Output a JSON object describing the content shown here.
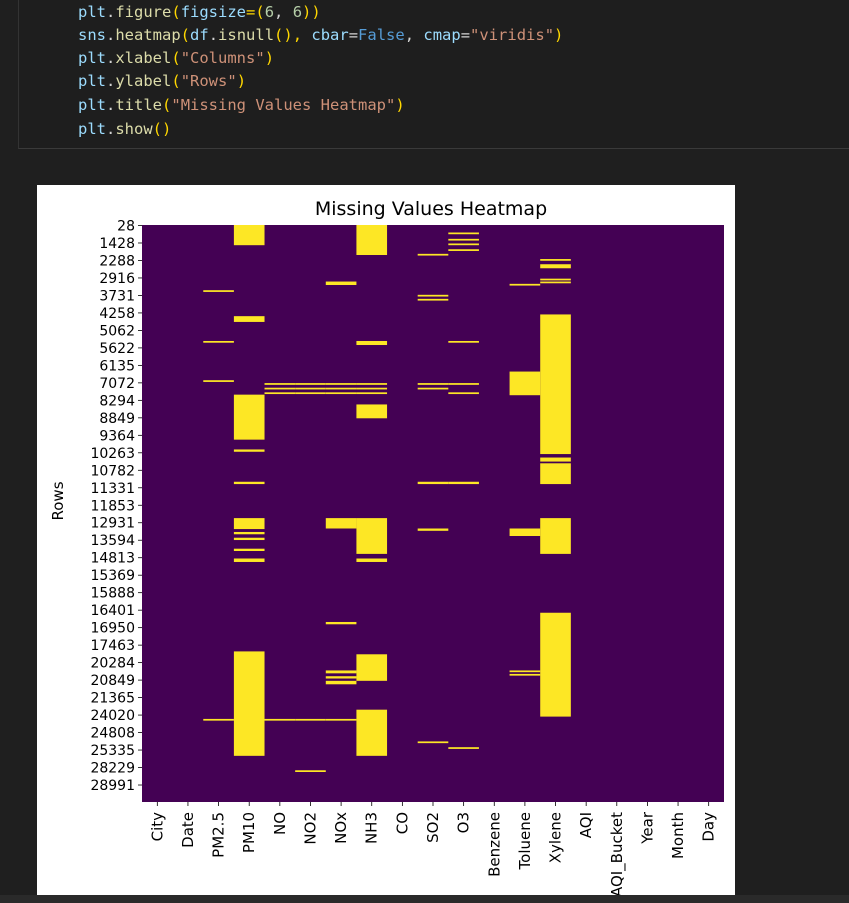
{
  "code": {
    "lines": [
      [
        [
          "plt",
          ".figure",
          "("
        ],
        [
          "figsize",
          "="
        ],
        [
          "(",
          "6",
          ", ",
          "6",
          ")"
        ],
        [
          ")"
        ]
      ],
      [],
      [],
      [],
      [],
      []
    ],
    "text": [
      "plt.figure(figsize=(6, 6))",
      "sns.heatmap(df.isnull(), cbar=False, cmap=\"viridis\")",
      "plt.xlabel(\"Columns\")",
      "plt.ylabel(\"Rows\")",
      "plt.title(\"Missing Values Heatmap\")",
      "plt.show()"
    ]
  },
  "gutter_marker": "]",
  "colors": {
    "absent": "#440154",
    "missing": "#fde725"
  },
  "chart_data": {
    "type": "heatmap",
    "title": "Missing Values Heatmap",
    "xlabel": "Columns",
    "ylabel": "Rows",
    "x_categories": [
      "City",
      "Date",
      "PM2.5",
      "PM10",
      "NO",
      "NO2",
      "NOx",
      "NH3",
      "CO",
      "SO2",
      "O3",
      "Benzene",
      "Toluene",
      "Xylene",
      "AQI",
      "AQI_Bucket",
      "Year",
      "Month",
      "Day"
    ],
    "y_tick_labels": [
      "28",
      "1428",
      "2288",
      "2916",
      "3731",
      "4258",
      "5062",
      "5622",
      "6135",
      "7072",
      "8294",
      "8849",
      "9364",
      "10263",
      "10782",
      "11331",
      "11853",
      "12931",
      "13594",
      "14813",
      "15369",
      "15888",
      "16401",
      "16950",
      "17463",
      "20284",
      "20849",
      "21365",
      "24020",
      "24808",
      "25335",
      "28229",
      "28991"
    ],
    "row_fraction_note": "Missing spans given as [start_fraction, end_fraction] of total rows",
    "missing_spans": {
      "PM2.5": [
        [
          0.113,
          0.116
        ],
        [
          0.201,
          0.204
        ],
        [
          0.269,
          0.272
        ],
        [
          0.856,
          0.859
        ]
      ],
      "PM10": [
        [
          0.0,
          0.035
        ],
        [
          0.158,
          0.168
        ],
        [
          0.294,
          0.372
        ],
        [
          0.389,
          0.393
        ],
        [
          0.445,
          0.449
        ],
        [
          0.508,
          0.527
        ],
        [
          0.532,
          0.536
        ],
        [
          0.542,
          0.546
        ],
        [
          0.561,
          0.565
        ],
        [
          0.578,
          0.584
        ],
        [
          0.739,
          0.92
        ]
      ],
      "NO": [
        [
          0.274,
          0.277
        ],
        [
          0.282,
          0.285
        ],
        [
          0.29,
          0.293
        ],
        [
          0.856,
          0.859
        ]
      ],
      "NO2": [
        [
          0.274,
          0.277
        ],
        [
          0.282,
          0.285
        ],
        [
          0.29,
          0.293
        ],
        [
          0.856,
          0.859
        ],
        [
          0.945,
          0.948
        ]
      ],
      "NOx": [
        [
          0.098,
          0.104
        ],
        [
          0.274,
          0.277
        ],
        [
          0.282,
          0.285
        ],
        [
          0.29,
          0.293
        ],
        [
          0.508,
          0.526
        ],
        [
          0.688,
          0.692
        ],
        [
          0.772,
          0.777
        ],
        [
          0.782,
          0.786
        ],
        [
          0.79,
          0.796
        ],
        [
          0.856,
          0.859
        ]
      ],
      "NH3": [
        [
          0.0,
          0.052
        ],
        [
          0.201,
          0.208
        ],
        [
          0.274,
          0.277
        ],
        [
          0.282,
          0.285
        ],
        [
          0.29,
          0.293
        ],
        [
          0.311,
          0.335
        ],
        [
          0.508,
          0.57
        ],
        [
          0.578,
          0.584
        ],
        [
          0.744,
          0.79
        ],
        [
          0.84,
          0.92
        ]
      ],
      "SO2": [
        [
          0.05,
          0.053
        ],
        [
          0.121,
          0.124
        ],
        [
          0.128,
          0.131
        ],
        [
          0.274,
          0.277
        ],
        [
          0.282,
          0.285
        ],
        [
          0.445,
          0.449
        ],
        [
          0.526,
          0.53
        ],
        [
          0.895,
          0.898
        ]
      ],
      "O3": [
        [
          0.013,
          0.016
        ],
        [
          0.024,
          0.027
        ],
        [
          0.032,
          0.035
        ],
        [
          0.042,
          0.045
        ],
        [
          0.201,
          0.204
        ],
        [
          0.274,
          0.277
        ],
        [
          0.29,
          0.293
        ],
        [
          0.445,
          0.449
        ],
        [
          0.905,
          0.908
        ]
      ],
      "Toluene": [
        [
          0.102,
          0.105
        ],
        [
          0.254,
          0.295
        ],
        [
          0.526,
          0.539
        ],
        [
          0.772,
          0.775
        ],
        [
          0.778,
          0.781
        ]
      ],
      "Xylene": [
        [
          0.059,
          0.062
        ],
        [
          0.068,
          0.075
        ],
        [
          0.093,
          0.096
        ],
        [
          0.098,
          0.101
        ],
        [
          0.155,
          0.397
        ],
        [
          0.403,
          0.41
        ],
        [
          0.413,
          0.449
        ],
        [
          0.508,
          0.57
        ],
        [
          0.672,
          0.852
        ]
      ]
    }
  }
}
